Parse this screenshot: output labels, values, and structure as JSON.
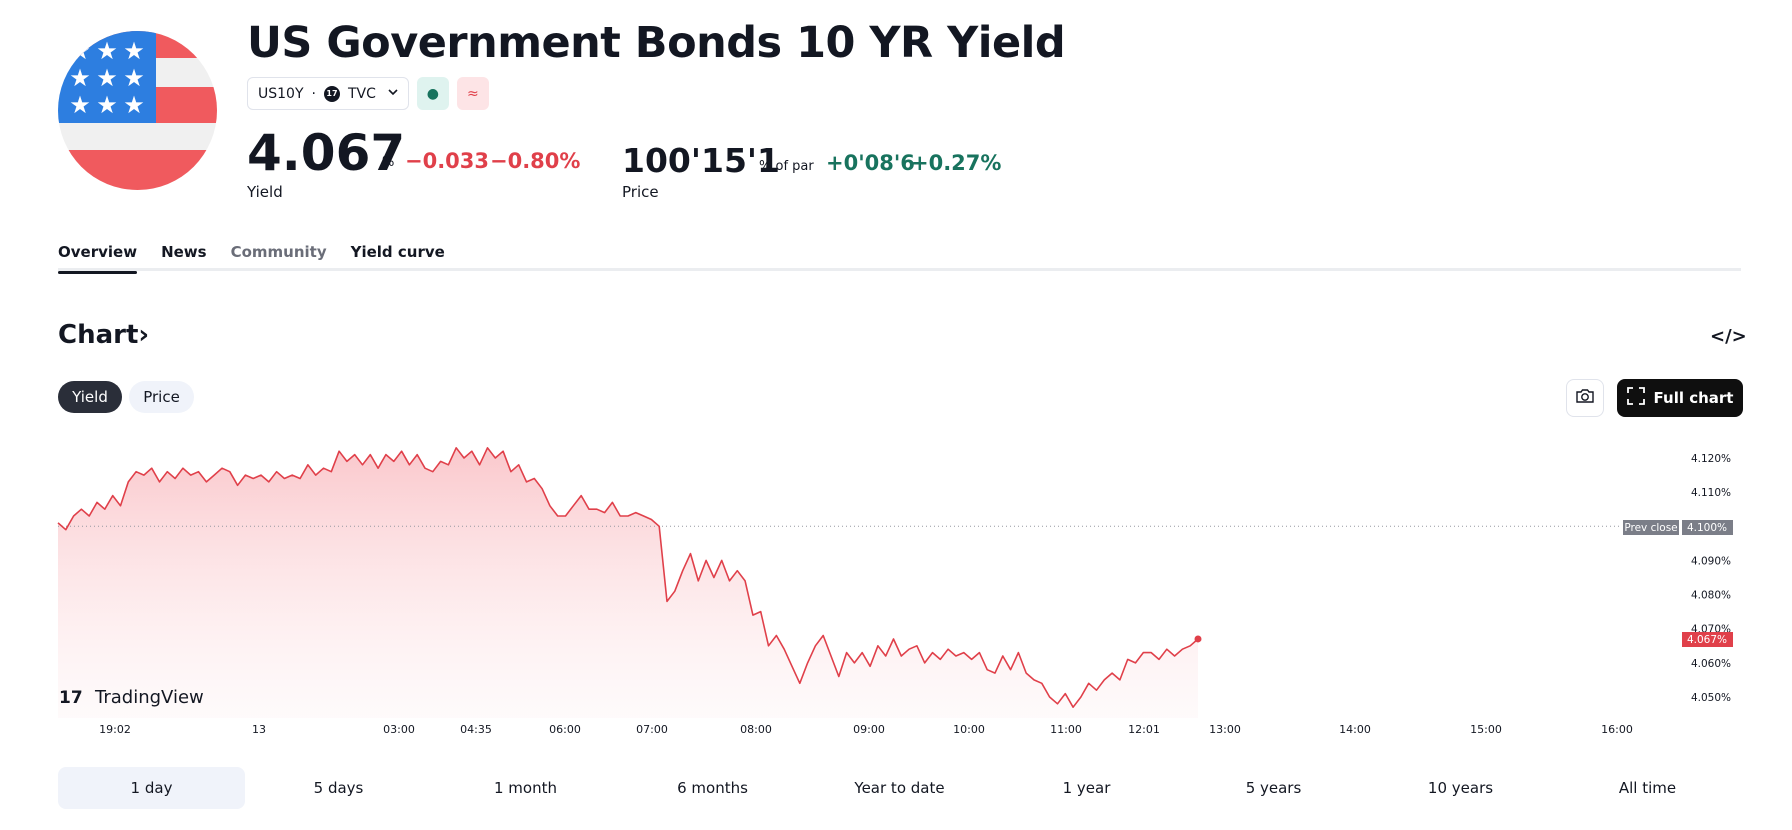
{
  "header": {
    "title": "US Government Bonds 10 YR Yield",
    "symbol": "US10Y",
    "separator": "·",
    "exchange": "TVC",
    "exchange_badge": "17",
    "market_status_icon": "●",
    "delayed_icon": "≈"
  },
  "yield": {
    "value": "4.067",
    "unit": "%",
    "change": "−0.033",
    "change_percent": "−0.80%",
    "label": "Yield"
  },
  "price": {
    "value": "100'15'1",
    "unit": "% of par",
    "change": "+0'08'6",
    "change_percent": "+0.27%",
    "label": "Price"
  },
  "tabs": [
    {
      "label": "Overview",
      "active": true
    },
    {
      "label": "News"
    },
    {
      "label": "Community"
    },
    {
      "label": "Yield curve"
    }
  ],
  "chart_section": {
    "heading": "Chart",
    "chevron": "›",
    "embed_icon": "</>",
    "toggle": [
      "Yield",
      "Price"
    ],
    "full_chart_label": "Full chart",
    "brand": "TradingView",
    "prev_close_label": "Prev close",
    "prev_close_value": "4.100%",
    "last_value_label": "4.067%"
  },
  "colors": {
    "negative": "#e0404a",
    "positive": "#18735e",
    "line": "#e0404a",
    "dark_button": "#0f0f0f"
  },
  "chart_data": {
    "type": "area",
    "title": "",
    "ylabel": "",
    "xlabel": "",
    "ylim": [
      4.045,
      4.125
    ],
    "y_ticks": [
      "4.120%",
      "4.110%",
      "4.100%",
      "4.090%",
      "4.080%",
      "4.070%",
      "4.060%",
      "4.050%"
    ],
    "x_ticks": [
      "19:02",
      "13",
      "03:00",
      "04:35",
      "06:00",
      "07:00",
      "08:00",
      "09:00",
      "10:00",
      "11:00",
      "12:01",
      "13:00",
      "14:00",
      "15:00",
      "16:00"
    ],
    "reference_line": {
      "label": "Prev close",
      "value": 4.1
    },
    "series": [
      {
        "values": [
          4.101,
          4.099,
          4.103,
          4.105,
          4.103,
          4.107,
          4.105,
          4.109,
          4.106,
          4.113,
          4.116,
          4.115,
          4.117,
          4.113,
          4.116,
          4.114,
          4.117,
          4.115,
          4.116,
          4.113,
          4.115,
          4.117,
          4.116,
          4.112,
          4.115,
          4.114,
          4.115,
          4.113,
          4.116,
          4.114,
          4.115,
          4.114,
          4.118,
          4.115,
          4.117,
          4.116,
          4.122,
          4.119,
          4.121,
          4.118,
          4.121,
          4.117,
          4.121,
          4.119,
          4.122,
          4.118,
          4.121,
          4.117,
          4.116,
          4.119,
          4.118,
          4.123,
          4.12,
          4.122,
          4.118,
          4.123,
          4.12,
          4.122,
          4.116,
          4.118,
          4.113,
          4.114,
          4.111,
          4.106,
          4.103,
          4.103,
          4.106,
          4.109,
          4.105,
          4.105,
          4.104,
          4.107,
          4.103,
          4.103,
          4.104,
          4.103,
          4.102,
          4.1,
          4.078,
          4.081,
          4.087,
          4.092,
          4.084,
          4.09,
          4.085,
          4.09,
          4.084,
          4.087,
          4.084,
          4.074,
          4.075,
          4.065,
          4.068,
          4.064,
          4.059,
          4.054,
          4.06,
          4.065,
          4.068,
          4.062,
          4.056,
          4.063,
          4.06,
          4.063,
          4.059,
          4.065,
          4.062,
          4.067,
          4.062,
          4.064,
          4.065,
          4.06,
          4.063,
          4.061,
          4.064,
          4.062,
          4.063,
          4.061,
          4.063,
          4.058,
          4.057,
          4.062,
          4.058,
          4.063,
          4.057,
          4.055,
          4.054,
          4.05,
          4.048,
          4.051,
          4.047,
          4.05,
          4.054,
          4.052,
          4.055,
          4.057,
          4.055,
          4.061,
          4.06,
          4.063,
          4.063,
          4.061,
          4.064,
          4.062,
          4.064,
          4.065,
          4.067
        ]
      }
    ],
    "last_value": 4.067,
    "grid": false,
    "line_color": "#e0404a"
  },
  "ranges": [
    {
      "label": "1 day",
      "active": true
    },
    {
      "label": "5 days"
    },
    {
      "label": "1 month"
    },
    {
      "label": "6 months"
    },
    {
      "label": "Year to date"
    },
    {
      "label": "1 year"
    },
    {
      "label": "5 years"
    },
    {
      "label": "10 years"
    },
    {
      "label": "All time"
    }
  ]
}
